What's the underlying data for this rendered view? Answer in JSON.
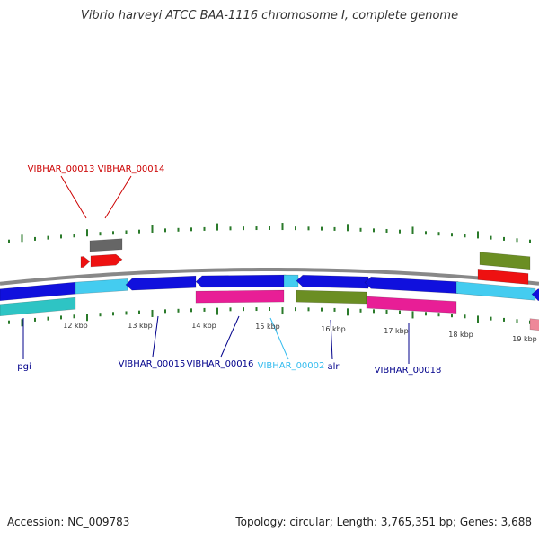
{
  "title": "Vibrio harveyi ATCC BAA-1116 chromosome I, complete genome",
  "footer": {
    "accession": "Accession: NC_009783",
    "summary": "Topology: circular; Length: 3,765,351 bp; Genes: 3,688"
  },
  "colors": {
    "backbone": "#888888",
    "dark_blue": "#1010dd",
    "light_blue": "#44ccf0",
    "cyan": "#2ec4c4",
    "magenta": "#e81e96",
    "olive": "#6b8e23",
    "red": "#ee1111",
    "gray_feature": "#666666",
    "pink": "#ee8899",
    "tick": "#2a7a2a",
    "label_red": "#cc0000",
    "label_blue": "#00008b",
    "label_cyan": "#33bbee"
  },
  "scale_labels": [
    "12 kbp",
    "13 kbp",
    "14 kbp",
    "15 kbp",
    "16 kbp",
    "17 kbp",
    "18 kbp",
    "19 kbp"
  ],
  "gene_labels": [
    {
      "text": "VIBHAR_00013",
      "color": "label_red"
    },
    {
      "text": "VIBHAR_00014",
      "color": "label_red"
    },
    {
      "text": "pgi",
      "color": "label_blue"
    },
    {
      "text": "VIBHAR_00015",
      "color": "label_blue"
    },
    {
      "text": "VIBHAR_00016",
      "color": "label_blue"
    },
    {
      "text": "VIBHAR_00002",
      "color": "label_cyan"
    },
    {
      "text": "alr",
      "color": "label_blue"
    },
    {
      "text": "VIBHAR_00018",
      "color": "label_blue"
    }
  ]
}
